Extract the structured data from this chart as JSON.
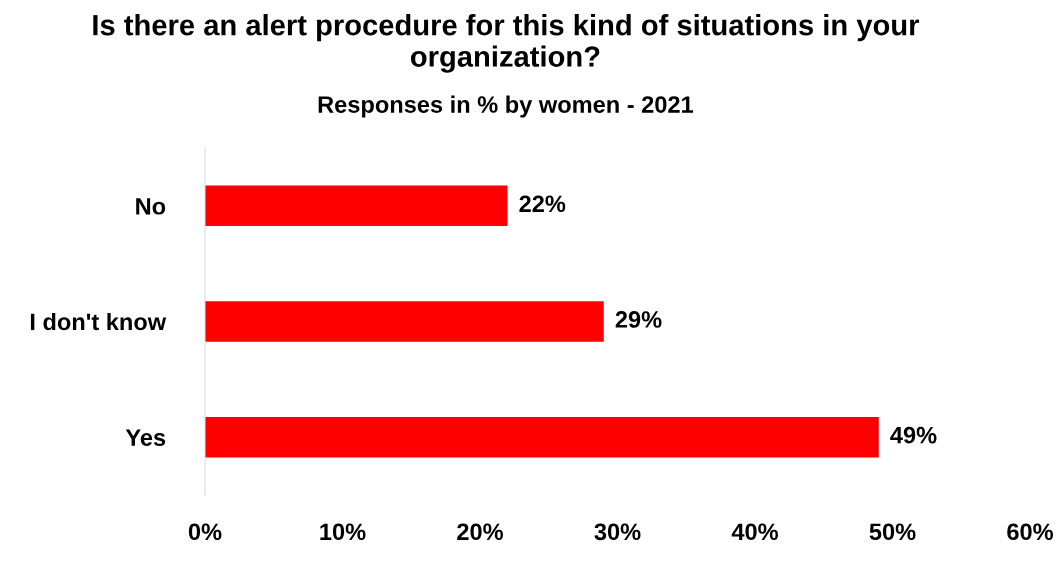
{
  "chart_data": {
    "type": "bar",
    "orientation": "horizontal",
    "title": "Is there an alert procedure for this kind of situations in your organization?",
    "subtitle": "Responses in % by women - 2021",
    "categories": [
      "No",
      "I don't know",
      "Yes"
    ],
    "values": [
      22,
      29,
      49
    ],
    "color": "#ff0000",
    "value_labels": [
      "22%",
      "29%",
      "49%"
    ],
    "xlim": [
      0,
      60
    ],
    "xticks": [
      {
        "value": 0,
        "label": "0%"
      },
      {
        "value": 10,
        "label": "10%"
      },
      {
        "value": 20,
        "label": "20%"
      },
      {
        "value": 30,
        "label": "30%"
      },
      {
        "value": 40,
        "label": "40%"
      },
      {
        "value": 50,
        "label": "50%"
      },
      {
        "value": 60,
        "label": "60%"
      }
    ],
    "grid": false,
    "legend": false
  }
}
